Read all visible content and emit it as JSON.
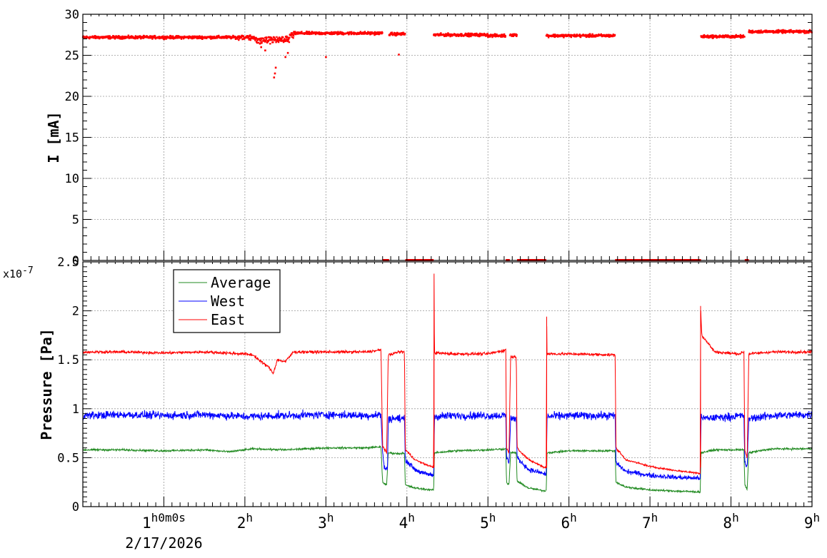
{
  "chart_data": [
    {
      "type": "scatter",
      "ylabel": "I [mA]",
      "ylim": [
        0,
        30
      ],
      "yticks": [
        0,
        5,
        10,
        15,
        20,
        25,
        30
      ],
      "xlim_hours": [
        0,
        9
      ],
      "grid": true,
      "series": [
        {
          "color": "#ff0000",
          "segments": [
            {
              "start": 0.0,
              "end": 2.1,
              "level": 27.2
            },
            {
              "start": 2.1,
              "end": 2.55,
              "level": 27.2
            },
            {
              "start": 2.55,
              "end": 3.7,
              "level": 27.7
            },
            {
              "start": 3.78,
              "end": 3.98,
              "level": 27.6
            },
            {
              "start": 4.33,
              "end": 5.0,
              "level": 27.5
            },
            {
              "start": 5.0,
              "end": 5.22,
              "level": 27.4
            },
            {
              "start": 5.27,
              "end": 5.36,
              "level": 27.5
            },
            {
              "start": 5.72,
              "end": 6.57,
              "level": 27.4
            },
            {
              "start": 7.63,
              "end": 8.17,
              "level": 27.3
            },
            {
              "start": 8.22,
              "end": 9.0,
              "level": 27.9
            }
          ],
          "zero_segments": [
            {
              "start": 3.7,
              "end": 3.78
            },
            {
              "start": 3.98,
              "end": 4.33
            },
            {
              "start": 5.22,
              "end": 5.27
            },
            {
              "start": 5.36,
              "end": 5.72
            },
            {
              "start": 6.57,
              "end": 7.63
            },
            {
              "start": 8.17,
              "end": 8.22
            }
          ],
          "dips": [
            {
              "t": 2.36,
              "value": 22.3
            },
            {
              "t": 2.37,
              "value": 22.8
            },
            {
              "t": 2.38,
              "value": 23.5
            },
            {
              "t": 2.5,
              "value": 24.8
            },
            {
              "t": 2.53,
              "value": 25.3
            },
            {
              "t": 3.0,
              "value": 24.8
            },
            {
              "t": 3.9,
              "value": 25.1
            },
            {
              "t": 2.25,
              "value": 25.6
            },
            {
              "t": 2.2,
              "value": 26.0
            }
          ]
        }
      ]
    },
    {
      "type": "line",
      "ylabel": "Pressure [Pa]",
      "y_multiplier": "x10",
      "y_exponent": "-7",
      "ylim": [
        0,
        2.5
      ],
      "yticks": [
        "0",
        "0.5",
        "1",
        "1.5",
        "2",
        "2.5"
      ],
      "grid": true,
      "legend": {
        "position": "top-left",
        "entries": [
          "Average",
          "West",
          "East"
        ]
      },
      "x_time_axis": {
        "ticks": [
          {
            "hour": 1,
            "text": "1",
            "unit": "h",
            "extra": "0m0s"
          },
          {
            "hour": 2,
            "text": "2",
            "unit": "h"
          },
          {
            "hour": 3,
            "text": "3",
            "unit": "h"
          },
          {
            "hour": 4,
            "text": "4",
            "unit": "h"
          },
          {
            "hour": 5,
            "text": "5",
            "unit": "h"
          },
          {
            "hour": 6,
            "text": "6",
            "unit": "h"
          },
          {
            "hour": 7,
            "text": "7",
            "unit": "h"
          },
          {
            "hour": 8,
            "text": "8",
            "unit": "h"
          },
          {
            "hour": 9,
            "text": "9",
            "unit": "h"
          }
        ],
        "date": "2/17/2026"
      },
      "series": [
        {
          "name": "Average",
          "color": "#228B22",
          "points": [
            [
              0,
              0.58
            ],
            [
              0.5,
              0.58
            ],
            [
              1.0,
              0.57
            ],
            [
              1.5,
              0.58
            ],
            [
              1.8,
              0.56
            ],
            [
              2.1,
              0.59
            ],
            [
              2.5,
              0.58
            ],
            [
              3.0,
              0.6
            ],
            [
              3.5,
              0.6
            ],
            [
              3.68,
              0.61
            ],
            [
              3.7,
              0.25
            ],
            [
              3.75,
              0.22
            ],
            [
              3.77,
              0.55
            ],
            [
              3.9,
              0.54
            ],
            [
              3.97,
              0.55
            ],
            [
              3.98,
              0.22
            ],
            [
              4.1,
              0.19
            ],
            [
              4.2,
              0.18
            ],
            [
              4.33,
              0.17
            ],
            [
              4.34,
              0.55
            ],
            [
              4.6,
              0.57
            ],
            [
              5.0,
              0.58
            ],
            [
              5.22,
              0.59
            ],
            [
              5.23,
              0.25
            ],
            [
              5.26,
              0.22
            ],
            [
              5.28,
              0.55
            ],
            [
              5.35,
              0.55
            ],
            [
              5.36,
              0.26
            ],
            [
              5.5,
              0.19
            ],
            [
              5.7,
              0.16
            ],
            [
              5.72,
              0.17
            ],
            [
              5.73,
              0.55
            ],
            [
              6.0,
              0.57
            ],
            [
              6.3,
              0.57
            ],
            [
              6.57,
              0.57
            ],
            [
              6.58,
              0.25
            ],
            [
              6.7,
              0.2
            ],
            [
              7.0,
              0.17
            ],
            [
              7.3,
              0.16
            ],
            [
              7.62,
              0.15
            ],
            [
              7.63,
              0.55
            ],
            [
              7.8,
              0.58
            ],
            [
              8.1,
              0.58
            ],
            [
              8.16,
              0.58
            ],
            [
              8.17,
              0.22
            ],
            [
              8.2,
              0.18
            ],
            [
              8.22,
              0.55
            ],
            [
              8.5,
              0.59
            ],
            [
              9.0,
              0.59
            ]
          ]
        },
        {
          "name": "West",
          "color": "#0000ff",
          "points": [
            [
              0,
              0.93
            ],
            [
              0.5,
              0.94
            ],
            [
              1.0,
              0.93
            ],
            [
              1.5,
              0.94
            ],
            [
              2.0,
              0.92
            ],
            [
              2.5,
              0.93
            ],
            [
              3.0,
              0.94
            ],
            [
              3.5,
              0.93
            ],
            [
              3.68,
              0.94
            ],
            [
              3.7,
              0.55
            ],
            [
              3.72,
              0.4
            ],
            [
              3.76,
              0.38
            ],
            [
              3.77,
              0.9
            ],
            [
              3.97,
              0.9
            ],
            [
              3.98,
              0.48
            ],
            [
              4.1,
              0.38
            ],
            [
              4.2,
              0.34
            ],
            [
              4.33,
              0.32
            ],
            [
              4.34,
              0.92
            ],
            [
              4.6,
              0.93
            ],
            [
              5.0,
              0.93
            ],
            [
              5.22,
              0.93
            ],
            [
              5.23,
              0.5
            ],
            [
              5.26,
              0.45
            ],
            [
              5.28,
              0.9
            ],
            [
              5.35,
              0.9
            ],
            [
              5.36,
              0.5
            ],
            [
              5.5,
              0.38
            ],
            [
              5.72,
              0.33
            ],
            [
              5.73,
              0.92
            ],
            [
              6.0,
              0.93
            ],
            [
              6.57,
              0.93
            ],
            [
              6.58,
              0.45
            ],
            [
              6.7,
              0.36
            ],
            [
              7.0,
              0.32
            ],
            [
              7.3,
              0.3
            ],
            [
              7.62,
              0.29
            ],
            [
              7.63,
              0.9
            ],
            [
              8.0,
              0.92
            ],
            [
              8.16,
              0.93
            ],
            [
              8.17,
              0.45
            ],
            [
              8.2,
              0.4
            ],
            [
              8.22,
              0.9
            ],
            [
              8.5,
              0.93
            ],
            [
              9.0,
              0.94
            ]
          ]
        },
        {
          "name": "East",
          "color": "#ff0000",
          "points": [
            [
              0,
              1.58
            ],
            [
              0.5,
              1.58
            ],
            [
              1.0,
              1.57
            ],
            [
              1.5,
              1.58
            ],
            [
              2.0,
              1.56
            ],
            [
              2.1,
              1.55
            ],
            [
              2.2,
              1.48
            ],
            [
              2.3,
              1.42
            ],
            [
              2.35,
              1.36
            ],
            [
              2.4,
              1.5
            ],
            [
              2.5,
              1.48
            ],
            [
              2.6,
              1.58
            ],
            [
              3.0,
              1.58
            ],
            [
              3.5,
              1.58
            ],
            [
              3.68,
              1.6
            ],
            [
              3.7,
              0.62
            ],
            [
              3.75,
              0.55
            ],
            [
              3.77,
              1.55
            ],
            [
              3.9,
              1.58
            ],
            [
              3.97,
              1.58
            ],
            [
              3.98,
              0.58
            ],
            [
              4.1,
              0.48
            ],
            [
              4.2,
              0.44
            ],
            [
              4.33,
              0.4
            ],
            [
              4.335,
              2.38
            ],
            [
              4.34,
              1.57
            ],
            [
              4.6,
              1.56
            ],
            [
              5.0,
              1.56
            ],
            [
              5.22,
              1.6
            ],
            [
              5.23,
              0.6
            ],
            [
              5.26,
              0.55
            ],
            [
              5.28,
              1.53
            ],
            [
              5.35,
              1.53
            ],
            [
              5.36,
              0.6
            ],
            [
              5.5,
              0.48
            ],
            [
              5.7,
              0.4
            ],
            [
              5.72,
              0.4
            ],
            [
              5.725,
              1.94
            ],
            [
              5.73,
              1.56
            ],
            [
              6.0,
              1.56
            ],
            [
              6.57,
              1.55
            ],
            [
              6.58,
              0.6
            ],
            [
              6.7,
              0.48
            ],
            [
              7.0,
              0.41
            ],
            [
              7.3,
              0.37
            ],
            [
              7.62,
              0.34
            ],
            [
              7.625,
              2.05
            ],
            [
              7.64,
              1.75
            ],
            [
              7.8,
              1.58
            ],
            [
              8.1,
              1.56
            ],
            [
              8.16,
              1.58
            ],
            [
              8.17,
              0.58
            ],
            [
              8.2,
              0.5
            ],
            [
              8.22,
              1.56
            ],
            [
              8.5,
              1.58
            ],
            [
              9.0,
              1.58
            ]
          ]
        }
      ]
    }
  ]
}
